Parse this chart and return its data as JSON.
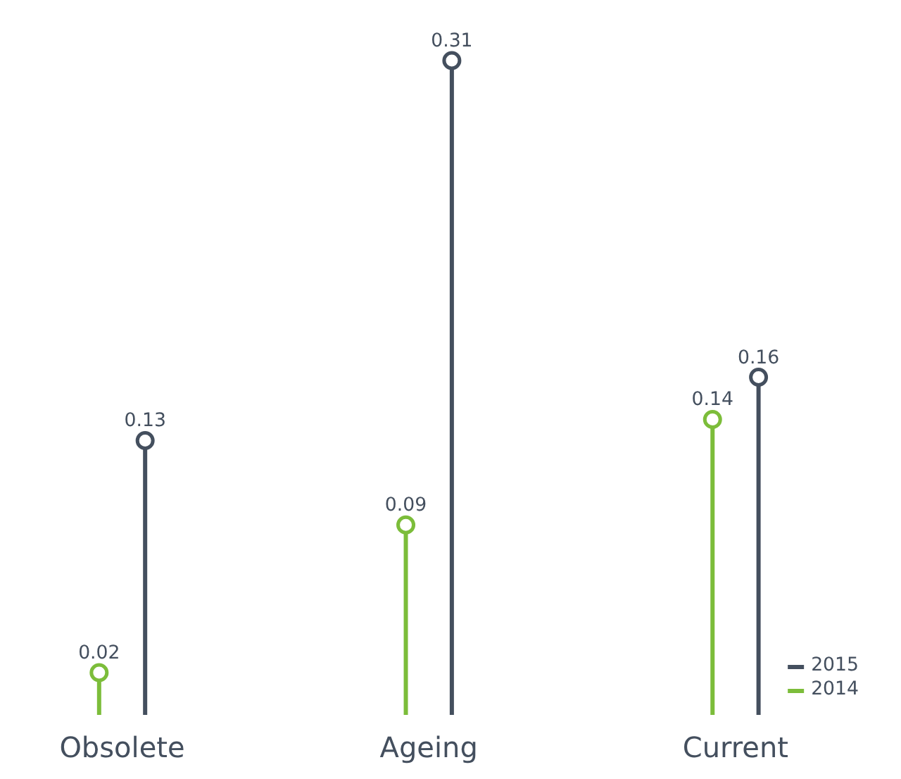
{
  "chart_data": {
    "type": "lollipop",
    "categories": [
      "Obsolete",
      "Ageing",
      "Current"
    ],
    "series": [
      {
        "name": "2014",
        "color": "#7cbd3a",
        "values": [
          0.02,
          0.09,
          0.14
        ]
      },
      {
        "name": "2015",
        "color": "#444f5e",
        "values": [
          0.13,
          0.31,
          0.16
        ]
      }
    ],
    "data_labels": true,
    "legend": "bottom right",
    "marker": "circle",
    "grid": false
  }
}
